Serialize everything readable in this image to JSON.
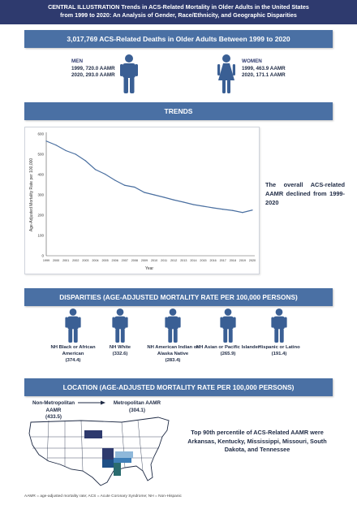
{
  "header": {
    "line1": "CENTRAL ILLUSTRATION  Trends in ACS-Related Mortality in Older Adults in the United States",
    "line2": "from 1999 to 2020: An Analysis of Gender, Race/Ethnicity, and Geographic Disparities"
  },
  "deaths_banner": "3,017,769 ACS-Related Deaths in Older Adults Between 1999 to 2020",
  "men": {
    "title": "MEN",
    "line1": "1999, 720.0 AAMR",
    "line2": "2020, 293.0 AAMR"
  },
  "women": {
    "title": "WOMEN",
    "line1": "1999, 463.9 AAMR",
    "line2": "2020, 171.1 AAMR"
  },
  "trends_banner": "TRENDS",
  "trend_note": "The overall ACS-related AAMR declined from 1999-2020",
  "chart_data": {
    "type": "line",
    "xlabel": "Year",
    "ylabel": "Age-Adjusted Mortality Rate per 100,000",
    "ylim": [
      0,
      600
    ],
    "yticks": [
      0,
      100,
      200,
      300,
      400,
      500,
      600
    ],
    "x": [
      "1999",
      "2000",
      "2001",
      "2002",
      "2003",
      "2004",
      "2005",
      "2006",
      "2007",
      "2008",
      "2009",
      "2010",
      "2011",
      "2012",
      "2013",
      "2014",
      "2015",
      "2016",
      "2017",
      "2018",
      "2019",
      "2020"
    ],
    "series": [
      {
        "values": [
          565,
          545,
          518,
          500,
          468,
          425,
          402,
          372,
          347,
          338,
          312,
          300,
          288,
          275,
          264,
          252,
          244,
          236,
          229,
          223,
          213,
          225
        ]
      }
    ],
    "grid": false,
    "color": "#4a6fa0"
  },
  "disparities_banner": "DISPARITIES (AGE-ADJUSTED MORTALITY RATE PER 100,000 PERSONS)",
  "groups": [
    {
      "label": "NH Black or African American",
      "value": "(374.4)"
    },
    {
      "label": "NH White",
      "value": "(332.6)"
    },
    {
      "label": "NH American Indian or Alaska Native",
      "value": "(283.4)"
    },
    {
      "label": "NH Asian or Pacific Islander",
      "value": "(265.9)"
    },
    {
      "label": "Hispanic or Latino",
      "value": "(191.4)"
    }
  ],
  "location_banner": "LOCATION (AGE-ADJUSTED MORTALITY RATE PER 100,000 PERSONS)",
  "nonmetro": {
    "label": "Non-Metropolitan AAMR",
    "value": "(433.5)"
  },
  "metro": {
    "label": "Metropolitan AAMR",
    "value": "(304.1)"
  },
  "top_note": "Top 90th percentile of ACS-Related AAMR were Arkansas, Kentucky, Mississippi, Missouri, South Dakota, and Tennessee",
  "footnote": "AAMR = age-adjusted mortality rate; ACS = Acute Coronary Syndrome; NH = Non-Hispanic",
  "colors": {
    "navy": "#2e3a6e",
    "banner": "#4a70a4",
    "figure": "#3a5f94",
    "line": "#4a6fa0"
  }
}
